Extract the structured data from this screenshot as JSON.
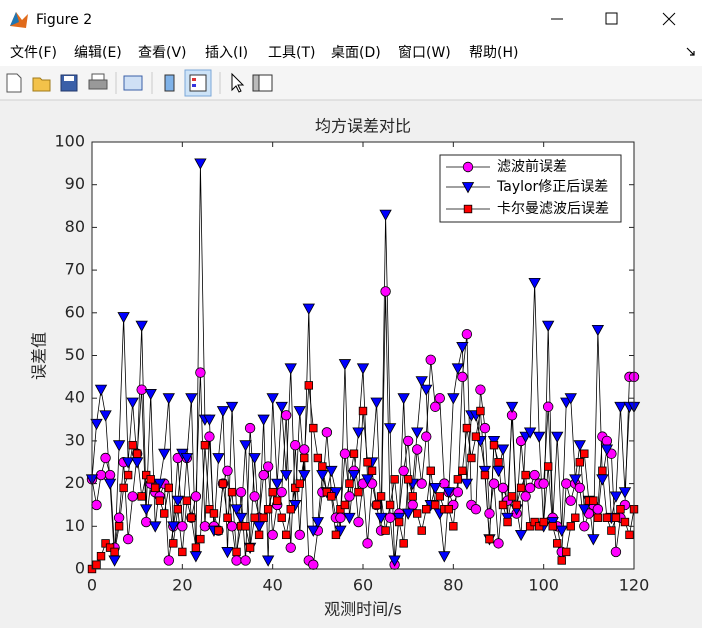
{
  "window": {
    "title": "Figure 2",
    "menu": [
      "文件(F)",
      "编辑(E)",
      "查看(V)",
      "插入(I)",
      "工具(T)",
      "桌面(D)",
      "窗口(W)",
      "帮助(H)"
    ]
  },
  "chart_data": {
    "type": "line",
    "title": "均方误差对比",
    "x_label": "观测时间/s",
    "y_label": "误差值",
    "x": [
      0,
      1,
      2,
      3,
      4,
      5,
      6,
      7,
      8,
      9,
      10,
      11,
      12,
      13,
      14,
      15,
      16,
      17,
      18,
      19,
      20,
      21,
      22,
      23,
      24,
      25,
      26,
      27,
      28,
      29,
      30,
      31,
      32,
      33,
      34,
      35,
      36,
      37,
      38,
      39,
      40,
      41,
      42,
      43,
      44,
      45,
      46,
      47,
      48,
      49,
      50,
      51,
      52,
      53,
      54,
      55,
      56,
      57,
      58,
      59,
      60,
      61,
      62,
      63,
      64,
      65,
      66,
      67,
      68,
      69,
      70,
      71,
      72,
      73,
      74,
      75,
      76,
      77,
      78,
      79,
      80,
      81,
      82,
      83,
      84,
      85,
      86,
      87,
      88,
      89,
      90,
      91,
      92,
      93,
      94,
      95,
      96,
      97,
      98,
      99,
      100,
      101,
      102,
      103,
      104,
      105,
      106,
      107,
      108,
      109,
      110,
      111,
      112,
      113,
      114,
      115,
      116,
      117,
      118,
      119,
      120
    ],
    "series": [
      {
        "name": "滤波前误差",
        "color": "#ff00ff",
        "marker": "o",
        "values": [
          21,
          15,
          22,
          26,
          22,
          5,
          12,
          25,
          7,
          17,
          27,
          42,
          11,
          20,
          18,
          17,
          20,
          2,
          10,
          26,
          10,
          26,
          12,
          17,
          46,
          10,
          31,
          10,
          9,
          20,
          23,
          10,
          2,
          18,
          2,
          33,
          17,
          12,
          22,
          24,
          8,
          15,
          18,
          36,
          5,
          29,
          8,
          28,
          2,
          1,
          9,
          18,
          32,
          18,
          12,
          12,
          27,
          17,
          23,
          11,
          20,
          6,
          20,
          15,
          9,
          65,
          12,
          1,
          13,
          23,
          30,
          15,
          28,
          20,
          31,
          49,
          38,
          40,
          20,
          18,
          15,
          18,
          45,
          55,
          15,
          14,
          42,
          33,
          13,
          20,
          6,
          19,
          16,
          36,
          13,
          30,
          17,
          19,
          22,
          20,
          20,
          38,
          12,
          10,
          4,
          20,
          16,
          20,
          19,
          10,
          13,
          15,
          14,
          31,
          30,
          27,
          4,
          12,
          15,
          45,
          45
        ]
      },
      {
        "name": "Taylor修正后误差",
        "color": "#0000ff",
        "marker": "v",
        "values": [
          21,
          34,
          42,
          36,
          20,
          2,
          29,
          59,
          25,
          39,
          25,
          57,
          14,
          41,
          10,
          20,
          27,
          40,
          10,
          16,
          27,
          26,
          40,
          3,
          95,
          35,
          35,
          9,
          26,
          37,
          4,
          38,
          14,
          12,
          29,
          5,
          26,
          10,
          35,
          2,
          40,
          20,
          38,
          22,
          47,
          15,
          37,
          22,
          61,
          9,
          11,
          22,
          18,
          23,
          18,
          9,
          48,
          12,
          22,
          32,
          47,
          21,
          25,
          39,
          12,
          83,
          33,
          2,
          12,
          40,
          13,
          20,
          32,
          44,
          42,
          15,
          19,
          13,
          3,
          18,
          40,
          47,
          52,
          20,
          36,
          36,
          30,
          23,
          7,
          30,
          23,
          28,
          12,
          38,
          14,
          8,
          31,
          32,
          67,
          31,
          10,
          57,
          11,
          31,
          9,
          39,
          40,
          21,
          29,
          14,
          16,
          7,
          56,
          21,
          28,
          12,
          17,
          38,
          18,
          38,
          38
        ]
      },
      {
        "name": "卡尔曼滤波后误差",
        "color": "#ff0000",
        "marker": "s",
        "values": [
          0,
          1,
          3,
          6,
          5,
          4,
          10,
          19,
          22,
          29,
          27,
          17,
          22,
          21,
          19,
          16,
          13,
          19,
          6,
          14,
          4,
          16,
          12,
          5,
          7,
          29,
          14,
          13,
          9,
          20,
          12,
          18,
          4,
          10,
          10,
          5,
          12,
          8,
          12,
          14,
          18,
          16,
          12,
          8,
          14,
          19,
          20,
          26,
          43,
          33,
          26,
          24,
          18,
          17,
          8,
          14,
          15,
          20,
          27,
          18,
          37,
          25,
          23,
          15,
          17,
          9,
          15,
          21,
          11,
          6,
          21,
          17,
          13,
          9,
          14,
          23,
          15,
          17,
          14,
          14,
          10,
          21,
          23,
          33,
          26,
          31,
          37,
          22,
          7,
          29,
          25,
          15,
          11,
          17,
          15,
          19,
          22,
          10,
          11,
          10,
          11,
          24,
          10,
          6,
          2,
          4,
          10,
          12,
          25,
          27,
          16,
          16,
          12,
          23,
          12,
          9,
          12,
          14,
          11,
          8,
          14
        ]
      }
    ],
    "xlim": [
      0,
      120
    ],
    "xticks": [
      0,
      20,
      40,
      60,
      80,
      100,
      120
    ],
    "ylim": [
      0,
      100
    ],
    "yticks": [
      0,
      10,
      20,
      30,
      40,
      50,
      60,
      70,
      80,
      90,
      100
    ],
    "grid": false,
    "legend": "upper right"
  }
}
